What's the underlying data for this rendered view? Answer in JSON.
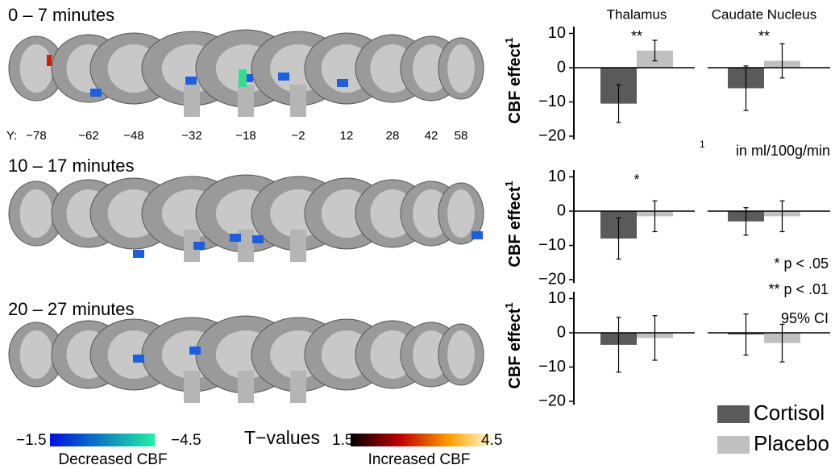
{
  "brain": {
    "rows": [
      "0 – 7 minutes",
      "10 – 17 minutes",
      "20 – 27 minutes"
    ],
    "y_prefix": "Y:",
    "y_coords": [
      "−78",
      "−62",
      "−48",
      "−32",
      "−18",
      "−2",
      "12",
      "28",
      "42",
      "58"
    ]
  },
  "colorbar": {
    "title": "T−values",
    "decreased": {
      "low": "−1.5",
      "high": "−4.5",
      "label": "Decreased CBF"
    },
    "increased": {
      "low": "1.5",
      "high": "4.5",
      "label": "Increased CBF"
    }
  },
  "notes": {
    "unit_mark": "1",
    "unit": "in ml/100g/min",
    "p05": "* p < .05",
    "p01": "** p < .01",
    "ci": "95% CI"
  },
  "legend": [
    {
      "name": "Cortisol",
      "color": "#5a5a5a"
    },
    {
      "name": "Placebo",
      "color": "#c0c0c0"
    }
  ],
  "chart_data": [
    {
      "type": "bar",
      "title": "Thalamus",
      "ylabel": "CBF effect",
      "ylabel_sup": "1",
      "values": [
        -10.5,
        5
      ],
      "errors": [
        5.5,
        3
      ],
      "annotation": "**",
      "ylim": [
        -21,
        12
      ],
      "yticks": [
        10,
        0,
        {
          "value": -10,
          "label": "−10"
        },
        {
          "value": -20,
          "label": "−20"
        }
      ]
    },
    {
      "type": "bar",
      "title": "Caudate Nucleus",
      "values": [
        -6,
        2
      ],
      "errors": [
        6.5,
        5
      ],
      "annotation": "**",
      "ylim": [
        -21,
        12
      ]
    },
    {
      "type": "bar",
      "ylabel": "CBF effect",
      "ylabel_sup": "1",
      "values": [
        -8,
        -1.5
      ],
      "errors": [
        6,
        4.5
      ],
      "annotation": "*",
      "ylim": [
        -21,
        12
      ],
      "yticks": [
        10,
        0,
        {
          "value": -10,
          "label": "−10"
        },
        {
          "value": -20,
          "label": "−20"
        }
      ]
    },
    {
      "type": "bar",
      "values": [
        -3,
        -1.5
      ],
      "errors": [
        4,
        4.5
      ],
      "ylim": [
        -21,
        12
      ]
    },
    {
      "type": "bar",
      "ylabel": "CBF effect",
      "ylabel_sup": "1",
      "values": [
        -3.5,
        -1.5
      ],
      "errors": [
        8,
        6.5
      ],
      "ylim": [
        -21,
        12
      ],
      "yticks": [
        10,
        0,
        {
          "value": -10,
          "label": "−10"
        },
        {
          "value": -20,
          "label": "−20"
        }
      ]
    },
    {
      "type": "bar",
      "values": [
        -0.5,
        -3
      ],
      "errors": [
        6,
        5.5
      ],
      "ylim": [
        -21,
        12
      ]
    }
  ]
}
